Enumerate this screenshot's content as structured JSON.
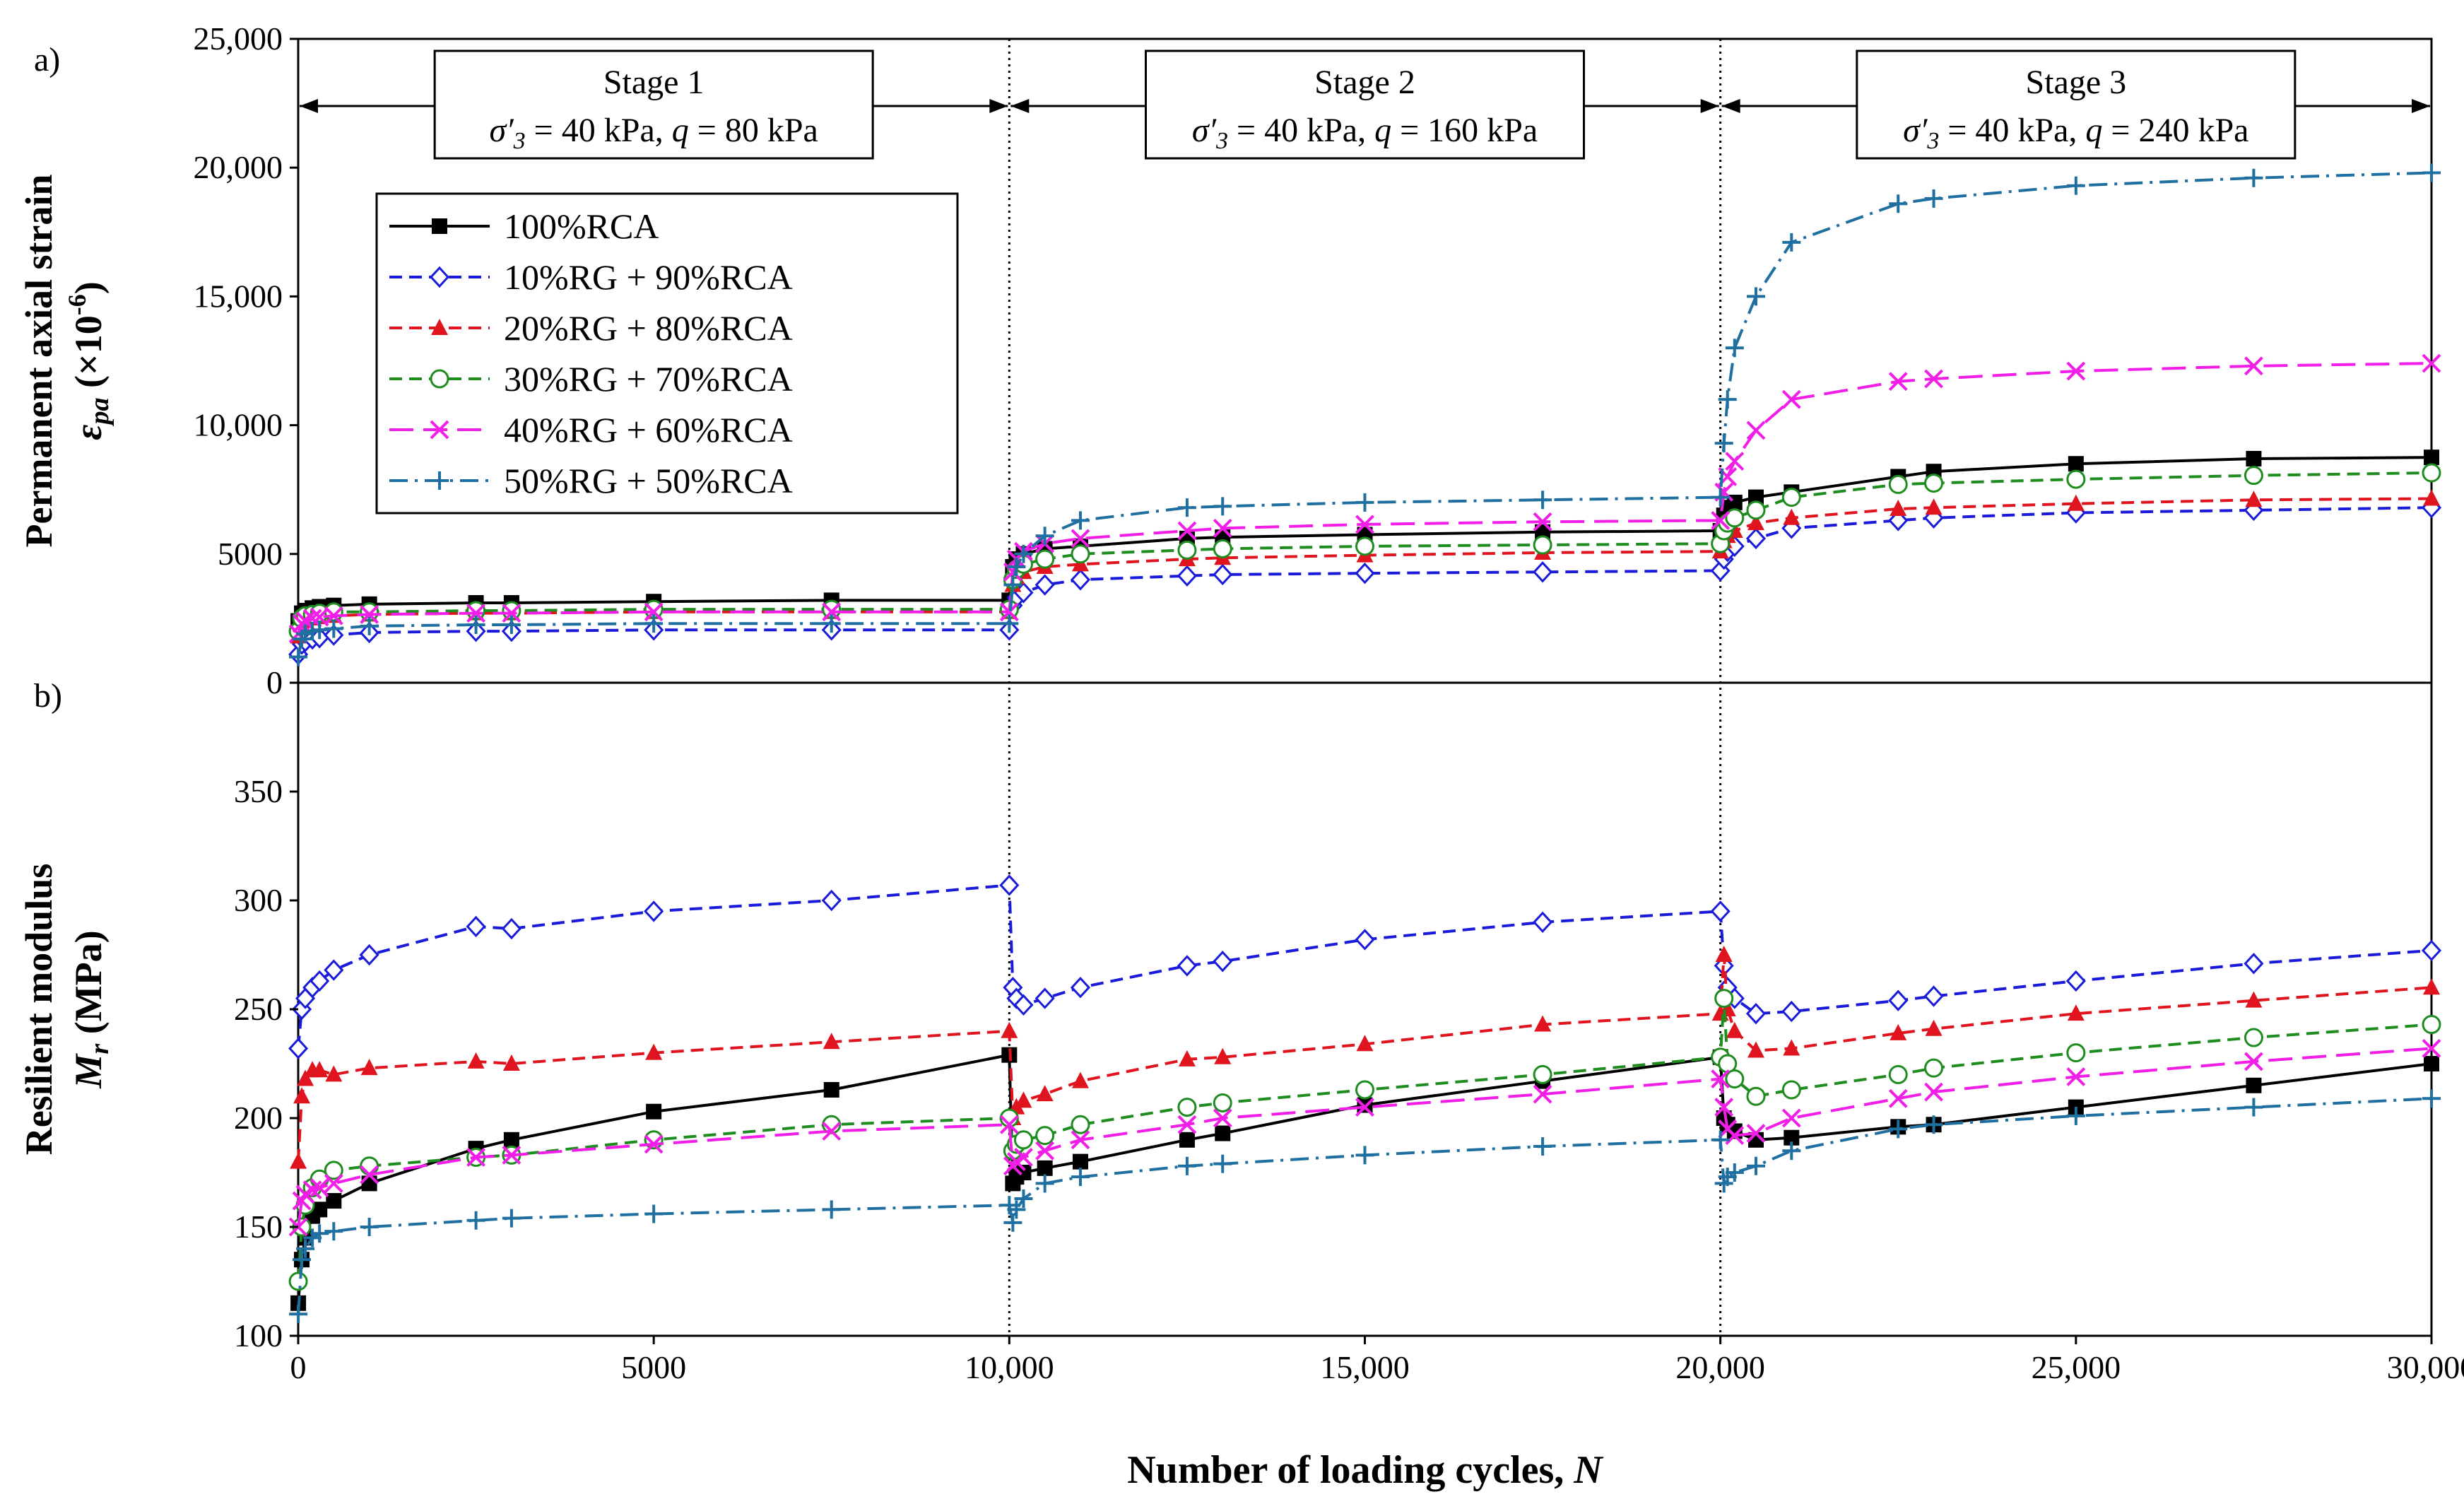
{
  "panel_labels": {
    "a": "a)",
    "b": "b)"
  },
  "stages": [
    {
      "title": "Stage 1",
      "sigma": "σ′",
      "sigma_sub": "3",
      "sigma_rest": " = 40 kPa, ",
      "q": "q",
      "q_rest": " = 80 kPa",
      "x_start": 0,
      "x_end": 10000
    },
    {
      "title": "Stage 2",
      "sigma": "σ′",
      "sigma_sub": "3",
      "sigma_rest": " = 40 kPa, ",
      "q": "q",
      "q_rest": " = 160 kPa",
      "x_start": 10000,
      "x_end": 20000
    },
    {
      "title": "Stage 3",
      "sigma": "σ′",
      "sigma_sub": "3",
      "sigma_rest": " = 40 kPa, ",
      "q": "q",
      "q_rest": " = 240 kPa",
      "x_start": 20000,
      "x_end": 30000
    }
  ],
  "colors": {
    "100%RCA": "#000000",
    "10%RG + 90%RCA": "#1a1adb",
    "20%RG + 80%RCA": "#e0141e",
    "30%RG + 70%RCA": "#1e8c1e",
    "40%RG + 60%RCA": "#f01ee6",
    "50%RG + 50%RCA": "#1f6fa0"
  },
  "chart_data": [
    {
      "type": "line",
      "panel": "a)",
      "title": "",
      "xlabel": "Number of loading cycles, N",
      "ylabel_line1": "Permanent axial strain",
      "ylabel_sym": "ε",
      "ylabel_sub": "pa",
      "ylabel_rest": " (×10",
      "ylabel_sup": "-6",
      "ylabel_close": ")",
      "xlim": [
        0,
        30000
      ],
      "ylim": [
        0,
        25000
      ],
      "yticks": [
        0,
        5000,
        10000,
        15000,
        20000,
        25000
      ],
      "ytick_labels": [
        "0",
        "5000",
        "10,000",
        "15,000",
        "20,000",
        "25,000"
      ],
      "legend_position": "upper-left",
      "series": [
        {
          "name": "100%RCA",
          "marker": "square",
          "dash": "solid",
          "x": [
            1,
            50,
            100,
            200,
            300,
            500,
            1000,
            2500,
            3000,
            5000,
            7500,
            10000,
            10050,
            10100,
            10200,
            10500,
            11000,
            12500,
            13000,
            15000,
            17500,
            20000,
            20050,
            20100,
            20200,
            20500,
            21000,
            22500,
            23000,
            25000,
            27500,
            30000
          ],
          "y": [
            2400,
            2700,
            2800,
            2900,
            2950,
            3000,
            3050,
            3100,
            3100,
            3150,
            3200,
            3200,
            4500,
            4800,
            5000,
            5200,
            5300,
            5600,
            5650,
            5750,
            5850,
            5900,
            6500,
            6800,
            7000,
            7200,
            7400,
            8000,
            8200,
            8500,
            8700,
            8750
          ]
        },
        {
          "name": "10%RG + 90%RCA",
          "marker": "diamond-open",
          "dash": "dash",
          "x": [
            1,
            50,
            100,
            200,
            300,
            500,
            1000,
            2500,
            3000,
            5000,
            7500,
            10000,
            10050,
            10100,
            10200,
            10500,
            11000,
            12500,
            13000,
            15000,
            17500,
            20000,
            20050,
            20100,
            20200,
            20500,
            21000,
            22500,
            23000,
            25000,
            27500,
            30000
          ],
          "y": [
            1100,
            1500,
            1600,
            1700,
            1750,
            1850,
            1950,
            2000,
            2000,
            2050,
            2050,
            2050,
            3000,
            3300,
            3500,
            3800,
            4000,
            4150,
            4200,
            4250,
            4300,
            4350,
            4800,
            5100,
            5300,
            5600,
            6000,
            6300,
            6400,
            6600,
            6700,
            6800
          ]
        },
        {
          "name": "20%RG + 80%RCA",
          "marker": "triangle",
          "dash": "dash",
          "x": [
            1,
            50,
            100,
            200,
            300,
            500,
            1000,
            2500,
            3000,
            5000,
            7500,
            10000,
            10050,
            10100,
            10200,
            10500,
            11000,
            12500,
            13000,
            15000,
            17500,
            20000,
            20050,
            20100,
            20200,
            20500,
            21000,
            22500,
            23000,
            25000,
            27500,
            30000
          ],
          "y": [
            1800,
            2300,
            2400,
            2500,
            2550,
            2600,
            2650,
            2700,
            2700,
            2750,
            2750,
            2750,
            3800,
            4100,
            4300,
            4500,
            4600,
            4800,
            4850,
            4950,
            5050,
            5100,
            5500,
            5700,
            5900,
            6200,
            6400,
            6750,
            6800,
            6950,
            7100,
            7150
          ]
        },
        {
          "name": "30%RG + 70%RCA",
          "marker": "circle-open",
          "dash": "dash",
          "x": [
            1,
            50,
            100,
            200,
            300,
            500,
            1000,
            2500,
            3000,
            5000,
            7500,
            10000,
            10050,
            10100,
            10200,
            10500,
            11000,
            12500,
            13000,
            15000,
            17500,
            20000,
            20050,
            20100,
            20200,
            20500,
            21000,
            22500,
            23000,
            25000,
            27500,
            30000
          ],
          "y": [
            2000,
            2500,
            2600,
            2650,
            2700,
            2750,
            2750,
            2800,
            2800,
            2850,
            2850,
            2850,
            4000,
            4400,
            4600,
            4800,
            5000,
            5150,
            5200,
            5300,
            5350,
            5400,
            5900,
            6200,
            6400,
            6700,
            7200,
            7700,
            7750,
            7900,
            8050,
            8150
          ]
        },
        {
          "name": "40%RG + 60%RCA",
          "marker": "x",
          "dash": "longdash",
          "x": [
            1,
            50,
            100,
            200,
            300,
            500,
            1000,
            2500,
            3000,
            5000,
            7500,
            10000,
            10050,
            10100,
            10200,
            10500,
            11000,
            12500,
            13000,
            15000,
            17500,
            20000,
            20050,
            20100,
            20200,
            20500,
            21000,
            22500,
            23000,
            25000,
            27500,
            30000
          ],
          "y": [
            1900,
            2300,
            2400,
            2500,
            2550,
            2600,
            2650,
            2700,
            2700,
            2750,
            2750,
            2750,
            4300,
            4800,
            5100,
            5400,
            5600,
            5900,
            6000,
            6150,
            6250,
            6300,
            7400,
            8000,
            8600,
            9800,
            11000,
            11700,
            11800,
            12100,
            12300,
            12400
          ]
        },
        {
          "name": "50%RG + 50%RCA",
          "marker": "plus",
          "dash": "dashdot",
          "x": [
            1,
            50,
            100,
            200,
            300,
            500,
            1000,
            2500,
            3000,
            5000,
            7500,
            10000,
            10050,
            10100,
            10200,
            10500,
            11000,
            12500,
            13000,
            15000,
            17500,
            20000,
            20050,
            20100,
            20200,
            20500,
            21000,
            22500,
            23000,
            25000,
            27500,
            30000
          ],
          "y": [
            1000,
            1700,
            1900,
            2000,
            2050,
            2100,
            2200,
            2250,
            2250,
            2300,
            2300,
            2300,
            3800,
            4500,
            5000,
            5700,
            6300,
            6800,
            6850,
            7000,
            7100,
            7200,
            9300,
            11000,
            13000,
            15000,
            17100,
            18600,
            18800,
            19300,
            19600,
            19800
          ]
        }
      ]
    },
    {
      "type": "line",
      "panel": "b)",
      "title": "",
      "xlabel": "Number of loading cycles, N",
      "ylabel_line1": "Resilient modulus",
      "ylabel_sym": "M",
      "ylabel_sub": "r",
      "ylabel_rest": " (MPa)",
      "xlim": [
        0,
        30000
      ],
      "ylim": [
        100,
        400
      ],
      "yticks": [
        100,
        150,
        200,
        250,
        300,
        350
      ],
      "ytick_labels": [
        "100",
        "150",
        "200",
        "250",
        "300",
        "350"
      ],
      "xticks": [
        0,
        5000,
        10000,
        15000,
        20000,
        25000,
        30000
      ],
      "xtick_labels": [
        "0",
        "5000",
        "10,000",
        "15,000",
        "20,000",
        "25,000",
        "30,000"
      ],
      "series": [
        {
          "name": "100%RCA",
          "x": [
            1,
            50,
            100,
            200,
            300,
            500,
            1000,
            2500,
            3000,
            5000,
            7500,
            10000,
            10050,
            10100,
            10200,
            10500,
            11000,
            12500,
            13000,
            15000,
            17500,
            20000,
            20050,
            20100,
            20200,
            20500,
            21000,
            22500,
            23000,
            25000,
            27500,
            30000
          ],
          "y": [
            115,
            135,
            145,
            155,
            158,
            162,
            170,
            186,
            190,
            203,
            213,
            229,
            170,
            173,
            175,
            177,
            180,
            190,
            193,
            206,
            217,
            228,
            200,
            197,
            194,
            190,
            191,
            196,
            197,
            205,
            215,
            225
          ]
        },
        {
          "name": "10%RG + 90%RCA",
          "x": [
            1,
            50,
            100,
            200,
            300,
            500,
            1000,
            2500,
            3000,
            5000,
            7500,
            10000,
            10050,
            10100,
            10200,
            10500,
            11000,
            12500,
            13000,
            15000,
            17500,
            20000,
            20050,
            20100,
            20200,
            20500,
            21000,
            22500,
            23000,
            25000,
            27500,
            30000
          ],
          "y": [
            232,
            250,
            255,
            260,
            263,
            268,
            275,
            288,
            287,
            295,
            300,
            307,
            260,
            255,
            252,
            255,
            260,
            270,
            272,
            282,
            290,
            295,
            270,
            260,
            255,
            248,
            249,
            254,
            256,
            263,
            271,
            277
          ]
        },
        {
          "name": "20%RG + 80%RCA",
          "x": [
            1,
            50,
            100,
            200,
            300,
            500,
            1000,
            2500,
            3000,
            5000,
            7500,
            10000,
            10050,
            10100,
            10200,
            10500,
            11000,
            12500,
            13000,
            15000,
            17500,
            20000,
            20050,
            20100,
            20200,
            20500,
            21000,
            22500,
            23000,
            25000,
            27500,
            30000
          ],
          "y": [
            180,
            210,
            218,
            222,
            222,
            220,
            223,
            226,
            225,
            230,
            235,
            240,
            200,
            205,
            208,
            211,
            217,
            227,
            228,
            234,
            243,
            248,
            275,
            250,
            240,
            231,
            232,
            239,
            241,
            248,
            254,
            260
          ]
        },
        {
          "name": "30%RG + 70%RCA",
          "x": [
            1,
            50,
            100,
            200,
            300,
            500,
            1000,
            2500,
            3000,
            5000,
            7500,
            10000,
            10050,
            10100,
            10200,
            10500,
            11000,
            12500,
            13000,
            15000,
            17500,
            20000,
            20050,
            20100,
            20200,
            20500,
            21000,
            22500,
            23000,
            25000,
            27500,
            30000
          ],
          "y": [
            125,
            150,
            160,
            168,
            172,
            176,
            178,
            182,
            183,
            190,
            197,
            200,
            185,
            188,
            190,
            192,
            197,
            205,
            207,
            213,
            220,
            228,
            255,
            225,
            218,
            210,
            213,
            220,
            223,
            230,
            237,
            243
          ]
        },
        {
          "name": "40%RG + 60%RCA",
          "x": [
            1,
            50,
            100,
            200,
            300,
            500,
            1000,
            2500,
            3000,
            5000,
            7500,
            10000,
            10050,
            10100,
            10200,
            10500,
            11000,
            12500,
            13000,
            15000,
            17500,
            20000,
            20050,
            20100,
            20200,
            20500,
            21000,
            22500,
            23000,
            25000,
            27500,
            30000
          ],
          "y": [
            150,
            162,
            165,
            167,
            168,
            170,
            174,
            182,
            183,
            188,
            194,
            197,
            178,
            180,
            182,
            185,
            190,
            197,
            200,
            205,
            211,
            218,
            205,
            195,
            192,
            193,
            200,
            209,
            212,
            219,
            226,
            232
          ]
        },
        {
          "name": "50%RG + 50%RCA",
          "x": [
            1,
            50,
            100,
            200,
            300,
            500,
            1000,
            2500,
            3000,
            5000,
            7500,
            10000,
            10050,
            10100,
            10200,
            10500,
            11000,
            12500,
            13000,
            15000,
            17500,
            20000,
            20050,
            20100,
            20200,
            20500,
            21000,
            22500,
            23000,
            25000,
            27500,
            30000
          ],
          "y": [
            110,
            135,
            140,
            145,
            147,
            148,
            150,
            153,
            154,
            156,
            158,
            160,
            152,
            158,
            163,
            170,
            173,
            178,
            179,
            183,
            187,
            190,
            170,
            173,
            175,
            178,
            185,
            195,
            197,
            201,
            205,
            209
          ]
        }
      ]
    }
  ]
}
